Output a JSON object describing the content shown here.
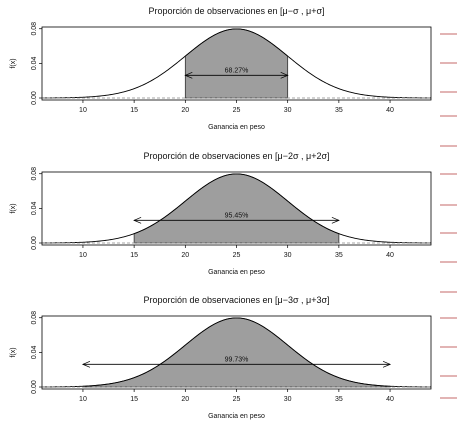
{
  "chart_data": [
    {
      "type": "area",
      "title": "Proporción de observaciones en [μ−σ , μ+σ]",
      "xlabel": "Ganancia en peso",
      "ylabel": "f(x)",
      "xlim": [
        6,
        44
      ],
      "ylim": [
        0,
        0.082
      ],
      "xticks": [
        "10",
        "15",
        "20",
        "25",
        "30",
        "35",
        "40"
      ],
      "yticks": [
        "0.00",
        "0.04",
        "0.08"
      ],
      "mean": 25,
      "sd": 5,
      "shaded_interval": [
        20,
        30
      ],
      "arrow_interval": [
        20,
        30
      ],
      "annotation": "68.27%",
      "grid": false,
      "fill_color": "#9e9e9e",
      "line_color": "#000000"
    },
    {
      "type": "area",
      "title": "Proporción de observaciones en [μ−2σ , μ+2σ]",
      "xlabel": "Ganancia en peso",
      "ylabel": "f(x)",
      "xlim": [
        6,
        44
      ],
      "ylim": [
        0,
        0.082
      ],
      "xticks": [
        "10",
        "15",
        "20",
        "25",
        "30",
        "35",
        "40"
      ],
      "yticks": [
        "0.00",
        "0.04",
        "0.08"
      ],
      "mean": 25,
      "sd": 5,
      "shaded_interval": [
        15,
        35
      ],
      "arrow_interval": [
        15,
        35
      ],
      "annotation": "95.45%",
      "grid": false,
      "fill_color": "#9e9e9e",
      "line_color": "#000000"
    },
    {
      "type": "area",
      "title": "Proporción de observaciones en [μ−3σ , μ+3σ]",
      "xlabel": "Ganancia en peso",
      "ylabel": "f(x)",
      "xlim": [
        6,
        44
      ],
      "ylim": [
        0,
        0.082
      ],
      "xticks": [
        "10",
        "15",
        "20",
        "25",
        "30",
        "35",
        "40"
      ],
      "yticks": [
        "0.00",
        "0.04",
        "0.08"
      ],
      "mean": 25,
      "sd": 5,
      "shaded_interval": [
        10,
        40
      ],
      "arrow_interval": [
        10,
        40
      ],
      "annotation": "99.73%",
      "grid": false,
      "fill_color": "#9e9e9e",
      "line_color": "#000000"
    }
  ],
  "accent_color": "#c46a6a"
}
